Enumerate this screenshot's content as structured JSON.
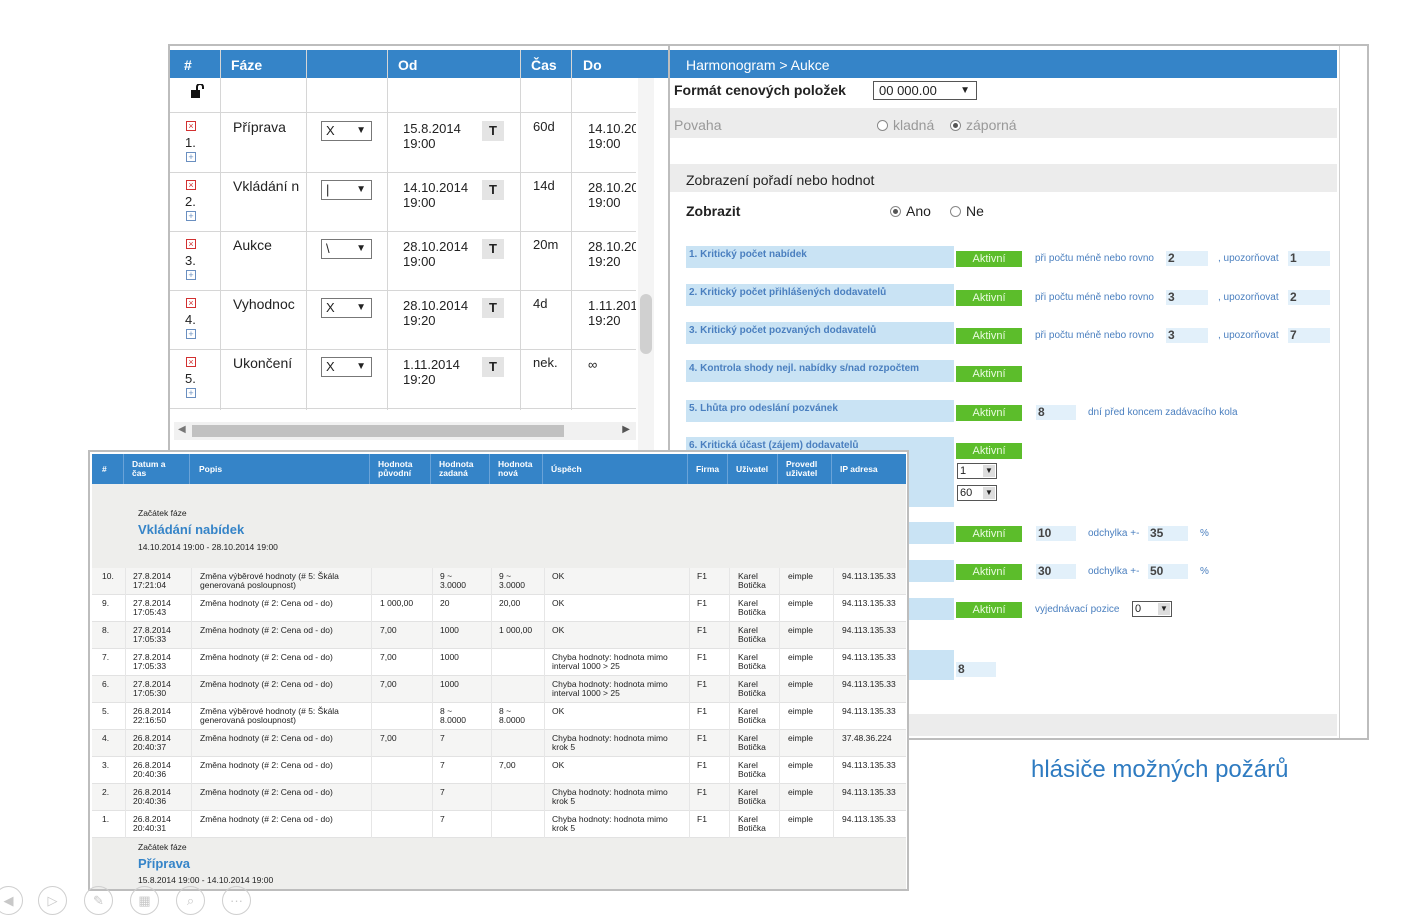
{
  "phases_table": {
    "headers": [
      "#",
      "Fáze",
      "",
      "Od",
      "Čas",
      "Do"
    ],
    "rows": [
      {
        "num": "1.",
        "name": "Příprava",
        "type": "X",
        "od": [
          "15.8.2014",
          "19:00"
        ],
        "t": "T",
        "cas": "60d",
        "do": [
          "14.10.20",
          "19:00"
        ]
      },
      {
        "num": "2.",
        "name": "Vkládání n",
        "type": "|",
        "od": [
          "14.10.2014",
          "19:00"
        ],
        "t": "T",
        "cas": "14d",
        "do": [
          "28.10.20",
          "19:00"
        ]
      },
      {
        "num": "3.",
        "name": "Aukce",
        "type": "\\",
        "od": [
          "28.10.2014",
          "19:00"
        ],
        "t": "T",
        "cas": "20m",
        "do": [
          "28.10.20",
          "19:20"
        ]
      },
      {
        "num": "4.",
        "name": "Vyhodnoc",
        "type": "X",
        "od": [
          "28.10.2014",
          "19:20"
        ],
        "t": "T",
        "cas": "4d",
        "do": [
          "1.11.201",
          "19:20"
        ]
      },
      {
        "num": "5.",
        "name": "Ukončení",
        "type": "X",
        "od": [
          "1.11.2014",
          "19:20"
        ],
        "t": "T",
        "cas": "nek.",
        "do": [
          "∞",
          ""
        ]
      }
    ]
  },
  "auction": {
    "breadcrumb": "Harmonogram > Aukce",
    "format_label": "Formát cenových položek",
    "format_value": "00 000.00",
    "povaha_label": "Povaha",
    "povaha_options": [
      "kladná",
      "záporná"
    ],
    "section_title": "Zobrazení pořadí nebo hodnot",
    "zobrazit_label": "Zobrazit",
    "zobrazit_options": [
      "Ano",
      "Ne"
    ],
    "active_label": "Aktivní",
    "criteria": [
      {
        "title": "1. Kritický počet nabídek",
        "text1": "při počtu méně nebo rovno",
        "val1": "2",
        "text2": ", upozorňovat",
        "val2": "1"
      },
      {
        "title": "2. Kritický počet přihlášených dodavatelů",
        "text1": "při počtu méně nebo rovno",
        "val1": "3",
        "text2": ", upozorňovat",
        "val2": "2"
      },
      {
        "title": "3. Kritický počet pozvaných dodavatelů",
        "text1": "při počtu méně nebo rovno",
        "val1": "3",
        "text2": ", upozorňovat",
        "val2": "7"
      },
      {
        "title": "4. Kontrola shody nejl. nabídky s/nad rozpočtem"
      },
      {
        "title": "5. Lhůta pro odeslání pozvánek",
        "val1": "8",
        "text1": "dní před koncem zadávacího kola"
      },
      {
        "title": "6. Kritická účast (zájem) dodavatelů",
        "sel1": "1",
        "sel2": "60"
      }
    ],
    "row7": {
      "val1": "10",
      "text1": "odchylka +-",
      "val2": "35",
      "unit": "%"
    },
    "row8": {
      "val1": "30",
      "text1": "odchylka +-",
      "val2": "50",
      "unit": "%"
    },
    "row9": {
      "text1": "vyjednávací pozice",
      "sel": "0"
    },
    "row10": {
      "val": "8",
      "label_fragment": "h"
    }
  },
  "log": {
    "headers": {
      "num": "#",
      "date": [
        "Datum a",
        "čas"
      ],
      "desc": "Popis",
      "orig": [
        "Hodnota",
        "původní"
      ],
      "entered": [
        "Hodnota",
        "zadaná"
      ],
      "new": [
        "Hodnota",
        "nová"
      ],
      "success": "Úspěch",
      "firm": "Firma",
      "user": "Uživatel",
      "by": [
        "Provedl",
        "uživatel"
      ],
      "ip": "IP adresa"
    },
    "phase_start_label": "Začátek fáze",
    "phase1": {
      "name": "Vkládání nabídek",
      "range": "14.10.2014 19:00 - 28.10.2014 19:00"
    },
    "phase2": {
      "name": "Příprava",
      "range": "15.8.2014 19:00 - 14.10.2014 19:00"
    },
    "rows": [
      {
        "n": "10.",
        "date": [
          "27.8.2014",
          "17:21:04"
        ],
        "desc": [
          "Změna výběrové hodnoty (# 5: Škála",
          "generovaná posloupnost)"
        ],
        "orig": "",
        "entered": [
          "9 ~",
          "3.0000"
        ],
        "new": [
          "9 ~",
          "3.0000"
        ],
        "ok": [
          "OK",
          ""
        ],
        "firm": "F1",
        "user": [
          "Karel",
          "Botička"
        ],
        "by": "eimple",
        "ip": "94.113.135.33"
      },
      {
        "n": "9.",
        "date": [
          "27.8.2014",
          "17:05:43"
        ],
        "desc": [
          "Změna hodnoty (# 2: Cena od - do)",
          ""
        ],
        "orig": "1 000,00",
        "entered": [
          "20",
          ""
        ],
        "new": [
          "20,00",
          ""
        ],
        "ok": [
          "OK",
          ""
        ],
        "firm": "F1",
        "user": [
          "Karel",
          "Botička"
        ],
        "by": "eimple",
        "ip": "94.113.135.33"
      },
      {
        "n": "8.",
        "date": [
          "27.8.2014",
          "17:05:33"
        ],
        "desc": [
          "Změna hodnoty (# 2: Cena od - do)",
          ""
        ],
        "orig": "7,00",
        "entered": [
          "1000",
          ""
        ],
        "new": [
          "1 000,00",
          ""
        ],
        "ok": [
          "OK",
          ""
        ],
        "firm": "F1",
        "user": [
          "Karel",
          "Botička"
        ],
        "by": "eimple",
        "ip": "94.113.135.33"
      },
      {
        "n": "7.",
        "date": [
          "27.8.2014",
          "17:05:33"
        ],
        "desc": [
          "Změna hodnoty (# 2: Cena od - do)",
          ""
        ],
        "orig": "7,00",
        "entered": [
          "1000",
          ""
        ],
        "new": [
          "",
          ""
        ],
        "ok": [
          "Chyba hodnoty: hodnota mimo",
          "interval 1000 > 25"
        ],
        "firm": "F1",
        "user": [
          "Karel",
          "Botička"
        ],
        "by": "eimple",
        "ip": "94.113.135.33"
      },
      {
        "n": "6.",
        "date": [
          "27.8.2014",
          "17:05:30"
        ],
        "desc": [
          "Změna hodnoty (# 2: Cena od - do)",
          ""
        ],
        "orig": "7,00",
        "entered": [
          "1000",
          ""
        ],
        "new": [
          "",
          ""
        ],
        "ok": [
          "Chyba hodnoty: hodnota mimo",
          "interval 1000 > 25"
        ],
        "firm": "F1",
        "user": [
          "Karel",
          "Botička"
        ],
        "by": "eimple",
        "ip": "94.113.135.33"
      },
      {
        "n": "5.",
        "date": [
          "26.8.2014",
          "22:16:50"
        ],
        "desc": [
          "Změna výběrové hodnoty (# 5: Škála",
          "generovaná posloupnost)"
        ],
        "orig": "",
        "entered": [
          "8 ~",
          "8.0000"
        ],
        "new": [
          "8 ~",
          "8.0000"
        ],
        "ok": [
          "OK",
          ""
        ],
        "firm": "F1",
        "user": [
          "Karel",
          "Botička"
        ],
        "by": "eimple",
        "ip": "94.113.135.33"
      },
      {
        "n": "4.",
        "date": [
          "26.8.2014",
          "20:40:37"
        ],
        "desc": [
          "Změna hodnoty (# 2: Cena od - do)",
          ""
        ],
        "orig": "7,00",
        "entered": [
          "7",
          ""
        ],
        "new": [
          "",
          ""
        ],
        "ok": [
          "Chyba hodnoty: hodnota mimo",
          "krok 5"
        ],
        "firm": "F1",
        "user": [
          "Karel",
          "Botička"
        ],
        "by": "eimple",
        "ip": "37.48.36.224"
      },
      {
        "n": "3.",
        "date": [
          "26.8.2014",
          "20:40:36"
        ],
        "desc": [
          "Změna hodnoty (# 2: Cena od - do)",
          ""
        ],
        "orig": "",
        "entered": [
          "7",
          ""
        ],
        "new": [
          "7,00",
          ""
        ],
        "ok": [
          "OK",
          ""
        ],
        "firm": "F1",
        "user": [
          "Karel",
          "Botička"
        ],
        "by": "eimple",
        "ip": "94.113.135.33"
      },
      {
        "n": "2.",
        "date": [
          "26.8.2014",
          "20:40:36"
        ],
        "desc": [
          "Změna hodnoty (# 2: Cena od - do)",
          ""
        ],
        "orig": "",
        "entered": [
          "7",
          ""
        ],
        "new": [
          "",
          ""
        ],
        "ok": [
          "Chyba hodnoty: hodnota mimo",
          "krok 5"
        ],
        "firm": "F1",
        "user": [
          "Karel",
          "Botička"
        ],
        "by": "eimple",
        "ip": "94.113.135.33"
      },
      {
        "n": "1.",
        "date": [
          "26.8.2014",
          "20:40:31"
        ],
        "desc": [
          "Změna hodnoty (# 2: Cena od - do)",
          ""
        ],
        "orig": "",
        "entered": [
          "7",
          ""
        ],
        "new": [
          "",
          ""
        ],
        "ok": [
          "Chyba hodnoty: hodnota mimo",
          "krok 5"
        ],
        "firm": "F1",
        "user": [
          "Karel",
          "Botička"
        ],
        "by": "eimple",
        "ip": "94.113.135.33"
      }
    ]
  },
  "caption": "hlásiče možných požárů",
  "toolbar_icons": [
    "prev-icon",
    "next-icon",
    "pen-icon",
    "grid-icon",
    "zoom-icon",
    "more-icon"
  ],
  "colors": {
    "header_blue": "#3584c8",
    "active_green": "#5cbd2b",
    "caption_blue": "#2e7bc1"
  }
}
